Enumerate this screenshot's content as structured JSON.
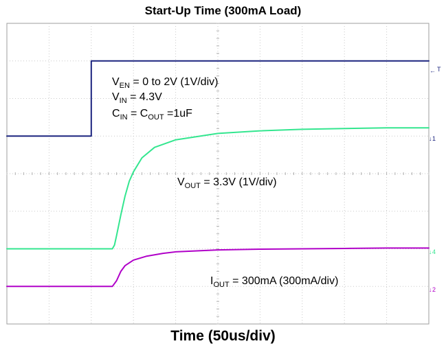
{
  "chart_data": {
    "type": "line",
    "title": "Start-Up Time (300mA Load)",
    "xlabel": "Time (50us/div)",
    "ylabel": "",
    "x_divisions": 10,
    "y_divisions": 8,
    "grid": true,
    "series": [
      {
        "name": "EN",
        "color": "#1a237e",
        "x": [
          0,
          2.0,
          2.0,
          10
        ],
        "y": [
          5.0,
          5.0,
          7.0,
          7.0
        ]
      },
      {
        "name": "VOUT",
        "color": "#33e68f",
        "x": [
          0,
          2.5,
          2.55,
          2.6,
          2.7,
          2.8,
          2.9,
          3.0,
          3.2,
          3.5,
          4.0,
          5.0,
          6.0,
          7.0,
          8.0,
          9.0,
          10.0
        ],
        "y": [
          2.0,
          2.0,
          2.1,
          2.35,
          2.9,
          3.4,
          3.8,
          4.05,
          4.42,
          4.7,
          4.9,
          5.07,
          5.14,
          5.18,
          5.2,
          5.22,
          5.22
        ],
        "level_label": "3.3V (1V/div)"
      },
      {
        "name": "IOUT",
        "color": "#b000c8",
        "x": [
          0,
          2.5,
          2.6,
          2.7,
          2.8,
          3.0,
          3.3,
          3.7,
          4.0,
          5.0,
          6.0,
          7.0,
          8.0,
          9.0,
          10.0
        ],
        "y": [
          1.0,
          1.0,
          1.15,
          1.4,
          1.55,
          1.7,
          1.8,
          1.88,
          1.92,
          1.97,
          1.99,
          2.0,
          2.01,
          2.02,
          2.02
        ],
        "level_label": "300mA (300mA/div)"
      }
    ]
  },
  "annotations": {
    "ven_main": "V",
    "ven_sub": "EN",
    "ven_rest": " = 0 to 2V (1V/div)",
    "vin_main": "V",
    "vin_sub": "IN",
    "vin_rest": " = 4.3V",
    "cin_main": "C",
    "cin_sub": "IN",
    "cin_mid": " = C",
    "cout_sub": "OUT",
    "cin_rest": " =1uF",
    "vout_main": "V",
    "vout_sub": "OUT",
    "vout_rest": " = 3.3V (1V/div)",
    "iout_main": "I",
    "iout_sub": "OUT",
    "iout_rest": " = 300mA (300mA/div)"
  },
  "channel_markers": {
    "trigger": "T",
    "ch1": "1",
    "ch4": "4",
    "ch2": "2"
  }
}
